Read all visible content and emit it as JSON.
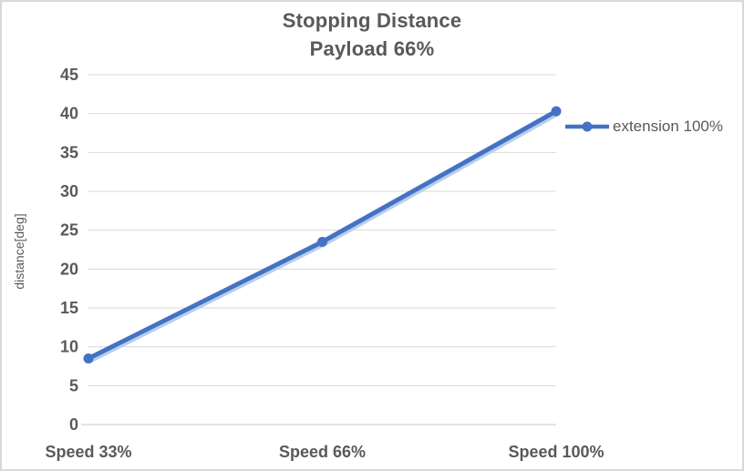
{
  "chart_data": {
    "type": "line",
    "title": "Stopping Distance",
    "subtitle": "Payload 66%",
    "categories": [
      "Speed 33%",
      "Speed 66%",
      "Speed 100%"
    ],
    "series": [
      {
        "name": "extension 100%",
        "values": [
          8.5,
          23.5,
          40.3
        ],
        "color": "#4472C4"
      }
    ],
    "xlabel": "",
    "ylabel": "distance[deg]",
    "ylim": [
      0,
      45
    ],
    "ytick_step": 5,
    "grid": true,
    "legend_position": "right",
    "colors": {
      "series_line": "#4472C4",
      "series_halo": "#B9CFEA",
      "gridline": "#D9D9D9",
      "axis_line": "#C9C9C9",
      "text": "#595959",
      "border": "#D9D9D9",
      "background": "#FFFFFF"
    }
  }
}
